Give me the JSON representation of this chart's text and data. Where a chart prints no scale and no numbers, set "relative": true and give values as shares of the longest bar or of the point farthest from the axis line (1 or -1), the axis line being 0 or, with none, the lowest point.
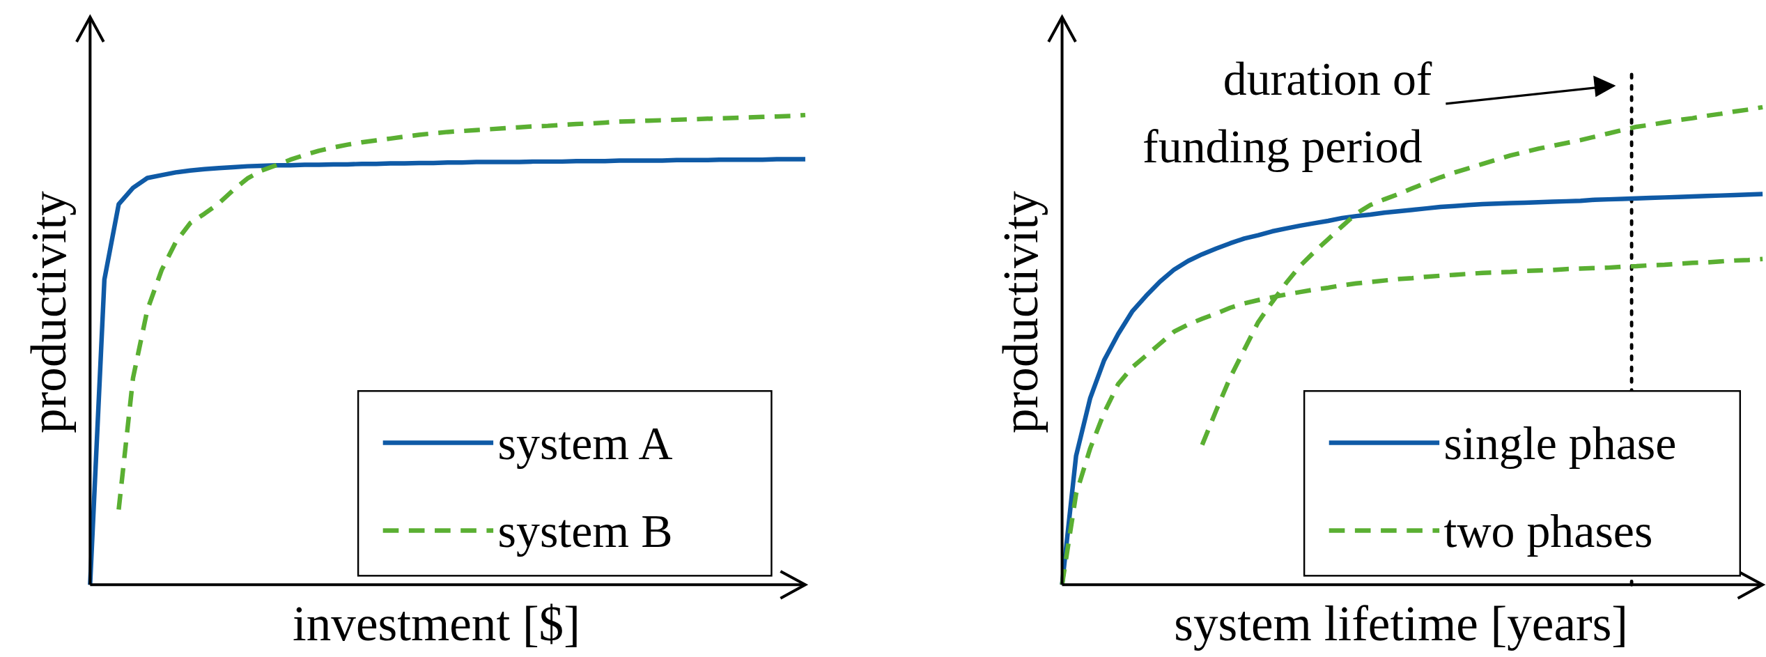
{
  "chart_data": [
    {
      "type": "line",
      "relative": true,
      "xlabel": "investment [$]",
      "ylabel": "productivity",
      "legend": "bottom right",
      "categories": [
        null,
        null,
        null,
        null,
        null,
        null,
        null,
        null,
        null,
        null,
        null,
        null,
        null,
        null,
        null,
        null,
        null,
        null,
        null,
        null,
        null,
        null,
        null,
        null,
        null,
        null,
        null,
        null,
        null,
        null,
        null,
        null,
        null,
        null,
        null,
        null,
        null,
        null,
        null,
        null,
        null,
        null,
        null,
        null,
        null,
        null,
        null,
        null,
        null,
        null,
        null
      ],
      "series": [
        {
          "name": "system A",
          "color": "#0f5aa6",
          "line_style": "solid",
          "values": [
            0,
            0.65,
            0.81,
            0.845,
            0.866,
            0.872,
            0.878,
            0.882,
            0.885,
            0.887,
            0.889,
            0.891,
            0.892,
            0.893,
            0.893,
            0.894,
            0.894,
            0.895,
            0.895,
            0.896,
            0.896,
            0.897,
            0.897,
            0.898,
            0.898,
            0.899,
            0.899,
            0.9,
            0.9,
            0.9,
            0.9,
            0.901,
            0.901,
            0.901,
            0.902,
            0.902,
            0.902,
            0.903,
            0.903,
            0.903,
            0.903,
            0.904,
            0.904,
            0.904,
            0.905,
            0.905,
            0.905,
            0.905,
            0.906,
            0.906,
            0.906
          ]
        },
        {
          "name": "system B",
          "color": "#5aaf32",
          "line_style": "dashed",
          "values": [
            null,
            null,
            0.16,
            0.44,
            0.585,
            0.67,
            0.73,
            0.77,
            0.79,
            0.812,
            0.84,
            0.865,
            0.882,
            0.893,
            0.905,
            0.915,
            0.924,
            0.931,
            0.937,
            0.942,
            0.946,
            0.95,
            0.954,
            0.958,
            0.961,
            0.964,
            0.966,
            0.968,
            0.97,
            0.972,
            0.974,
            0.976,
            0.977,
            0.979,
            0.981,
            0.982,
            0.984,
            0.986,
            0.987,
            0.988,
            0.989,
            0.99,
            0.991,
            0.992,
            0.993,
            0.994,
            0.995,
            0.996,
            0.997,
            0.998,
            1.0
          ]
        }
      ]
    },
    {
      "type": "line",
      "relative": true,
      "xlabel": "system lifetime [years]",
      "ylabel": "productivity",
      "legend": "bottom right",
      "categories": [
        null,
        null,
        null,
        null,
        null,
        null,
        null,
        null,
        null,
        null,
        null,
        null,
        null,
        null,
        null,
        null,
        null,
        null,
        null,
        null,
        null,
        null,
        null,
        null,
        null,
        null,
        null,
        null,
        null,
        null,
        null,
        null,
        null,
        null,
        null,
        null,
        null,
        null,
        null,
        null,
        null,
        null,
        null,
        null,
        null,
        null,
        null,
        null,
        null,
        null,
        null
      ],
      "annotations": [
        "duration of funding period"
      ],
      "series": [
        {
          "name": "single phase",
          "color": "#0f5aa6",
          "line_style": "solid",
          "values": [
            0,
            0.27,
            0.39,
            0.47,
            0.525,
            0.572,
            0.605,
            0.635,
            0.66,
            0.678,
            0.692,
            0.704,
            0.715,
            0.725,
            0.732,
            0.74,
            0.746,
            0.752,
            0.757,
            0.762,
            0.768,
            0.772,
            0.775,
            0.779,
            0.782,
            0.785,
            0.788,
            0.791,
            0.793,
            0.795,
            0.797,
            0.798,
            0.799,
            0.8,
            0.801,
            0.802,
            0.803,
            0.804,
            0.806,
            0.807,
            0.808,
            0.809,
            0.81,
            0.811,
            0.812,
            0.813,
            0.814,
            0.815,
            0.816,
            0.817,
            0.818
          ]
        },
        {
          "name": "two phases",
          "color": "#5aaf32",
          "line_style": "dashed",
          "values": [
            0,
            0.19,
            0.285,
            0.36,
            0.42,
            0.455,
            0.48,
            0.505,
            0.53,
            0.545,
            0.557,
            0.568,
            0.58,
            0.589,
            0.596,
            0.602,
            0.608,
            0.613,
            0.618,
            0.622,
            0.627,
            0.631,
            0.634,
            0.637,
            0.64,
            0.642,
            0.645,
            0.647,
            0.649,
            0.651,
            0.653,
            0.654,
            0.655,
            0.657,
            0.658,
            0.659,
            0.661,
            0.662,
            0.663,
            0.664,
            0.666,
            0.667,
            0.669,
            0.67,
            0.672,
            0.674,
            0.675,
            0.677,
            0.679,
            0.68,
            0.682
          ]
        },
        {
          "color": "#5aaf32",
          "line_style": "dashed",
          "values": [
            null,
            null,
            null,
            null,
            null,
            null,
            null,
            null,
            null,
            null,
            0.293,
            0.365,
            0.434,
            0.492,
            0.55,
            0.592,
            0.632,
            0.668,
            0.697,
            0.724,
            0.751,
            0.777,
            0.795,
            0.807,
            0.818,
            0.83,
            0.842,
            0.853,
            0.863,
            0.872,
            0.881,
            0.89,
            0.899,
            0.906,
            0.913,
            0.919,
            0.925,
            0.931,
            0.938,
            0.945,
            0.952,
            0.959,
            0.963,
            0.968,
            0.973,
            0.977,
            0.982,
            0.986,
            0.991,
            0.995,
            1.0
          ]
        }
      ]
    }
  ]
}
